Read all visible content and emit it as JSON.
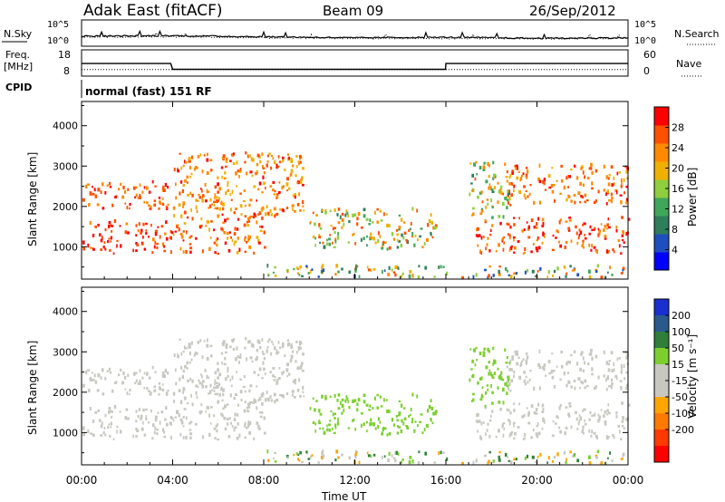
{
  "header": {
    "site_title": "Adak East (fitACF)",
    "beam": "Beam 09",
    "date": "26/Sep/2012"
  },
  "noise_panel": {
    "left_label": "N.Sky",
    "right_label": "N.Search",
    "left_ticks": [
      "10^5",
      "10^0"
    ],
    "right_ticks": [
      "10^5",
      "10^0"
    ]
  },
  "freq_panel": {
    "left_label_1": "Freq.",
    "left_label_2": "[MHz]",
    "right_label": "Nave",
    "left_ticks": [
      "18",
      "8"
    ],
    "right_ticks": [
      "60",
      "0"
    ]
  },
  "cpid_panel": {
    "label": "CPID",
    "mode_text": "normal (fast) 151 RF"
  },
  "colors": {
    "frame": "#000000",
    "power_scale": [
      "#0000ff",
      "#1f4fbf",
      "#2e7d5b",
      "#3fa65a",
      "#8fce3c",
      "#f0b000",
      "#ff8a00",
      "#ff5000",
      "#ff0000"
    ],
    "velocity_scale": [
      "#1a2fd0",
      "#2a5a8c",
      "#2f7f3a",
      "#7ccf2f",
      "#c8c8c0",
      "#c8c8c0",
      "#ffa500",
      "#ff7a00",
      "#ff3a00",
      "#ff0000"
    ]
  },
  "chart_data": [
    {
      "type": "line",
      "panel": "noise",
      "series": [
        {
          "name": "N.Sky",
          "x": [
            "00:00",
            "04:00",
            "08:00",
            "12:00",
            "16:00",
            "20:00",
            "00:00"
          ],
          "values_log10": [
            1.9,
            2.0,
            1.8,
            1.6,
            1.7,
            1.5,
            1.6
          ]
        },
        {
          "name": "N.Search",
          "x": [
            "00:00",
            "04:00",
            "08:00",
            "12:00",
            "16:00",
            "20:00",
            "00:00"
          ],
          "values_log10": [
            1.7,
            1.8,
            1.6,
            1.5,
            1.5,
            1.4,
            1.5
          ]
        }
      ],
      "ylim_log10": [
        0,
        5
      ]
    },
    {
      "type": "line",
      "panel": "frequency",
      "series": [
        {
          "name": "Freq.",
          "x": [
            "00:00",
            "03:55",
            "04:00",
            "15:59",
            "16:00",
            "24:00"
          ],
          "values": [
            12.8,
            12.8,
            10.6,
            10.6,
            12.8,
            12.8
          ]
        },
        {
          "name": "Nave",
          "x": [
            "00:00",
            "24:00"
          ],
          "values": [
            15,
            15
          ]
        }
      ],
      "ylim_left": [
        8,
        18
      ],
      "ylim_right": [
        0,
        60
      ]
    },
    {
      "type": "heatmap",
      "panel": "power",
      "xlabel": "",
      "ylabel": "Slant Range [km]",
      "x_ticks": [
        "00:00",
        "04:00",
        "08:00",
        "12:00",
        "16:00",
        "20:00",
        "00:00"
      ],
      "xlim_hours": [
        0,
        24
      ],
      "y_ticks": [
        1000,
        2000,
        3000,
        4000
      ],
      "ylim_km": [
        200,
        4600
      ],
      "colorbar_label": "Power [dB]",
      "colorbar_ticks": [
        4,
        8,
        12,
        16,
        20,
        24,
        28
      ],
      "colorbar_range": [
        0,
        32
      ]
    },
    {
      "type": "heatmap",
      "panel": "velocity",
      "xlabel": "Time UT",
      "ylabel": "Slant Range [km]",
      "x_ticks": [
        "00:00",
        "04:00",
        "08:00",
        "12:00",
        "16:00",
        "20:00",
        "00:00"
      ],
      "xlim_hours": [
        0,
        24
      ],
      "y_ticks": [
        1000,
        2000,
        3000,
        4000
      ],
      "ylim_km": [
        200,
        4600
      ],
      "colorbar_label": "Velocity [m s⁻¹]",
      "colorbar_ticks": [
        200,
        100,
        50,
        15,
        -15,
        -50,
        -100,
        -200
      ],
      "colorbar_range": [
        -250,
        250
      ]
    }
  ],
  "scatter_regions": [
    {
      "id": "near_band_early",
      "t0": 0.0,
      "t1": 4.0,
      "r0": 800,
      "r1": 1600,
      "pwr": [
        24,
        32
      ],
      "vel": [
        -15,
        15
      ]
    },
    {
      "id": "far_band_early",
      "t0": 0.0,
      "t1": 4.0,
      "r0": 1900,
      "r1": 2600,
      "pwr": [
        22,
        30
      ],
      "vel": [
        -15,
        15
      ]
    },
    {
      "id": "near_band_mid",
      "t0": 4.0,
      "t1": 8.0,
      "r0": 800,
      "r1": 1700,
      "pwr": [
        20,
        30
      ],
      "vel": [
        -15,
        15
      ]
    },
    {
      "id": "rising_arc",
      "t0": 4.0,
      "t1": 9.8,
      "r0": 1700,
      "r1": 3300,
      "pwr": [
        18,
        30
      ],
      "vel": [
        -15,
        15
      ]
    },
    {
      "id": "orange_patch",
      "t0": 5.0,
      "t1": 6.6,
      "r0": 1900,
      "r1": 2400,
      "pwr": [
        20,
        28
      ],
      "vel": [
        -50,
        -15
      ]
    },
    {
      "id": "evening_blob",
      "t0": 10.0,
      "t1": 15.6,
      "r0": 900,
      "r1": 1900,
      "pwr": [
        8,
        28
      ],
      "vel": [
        15,
        50
      ]
    },
    {
      "id": "late_near",
      "t0": 17.3,
      "t1": 24.0,
      "r0": 800,
      "r1": 1700,
      "pwr": [
        22,
        32
      ],
      "vel": [
        -15,
        15
      ]
    },
    {
      "id": "late_far",
      "t0": 18.6,
      "t1": 24.0,
      "r0": 2000,
      "r1": 3000,
      "pwr": [
        20,
        30
      ],
      "vel": [
        -15,
        15
      ]
    },
    {
      "id": "late_rise",
      "t0": 17.0,
      "t1": 18.8,
      "r0": 1600,
      "r1": 3100,
      "pwr": [
        10,
        26
      ],
      "vel": [
        15,
        50
      ]
    },
    {
      "id": "ground_scatter",
      "t0": 8.0,
      "t1": 24.0,
      "r0": 200,
      "r1": 500,
      "pwr": [
        4,
        28
      ],
      "vel": [
        -100,
        100
      ]
    }
  ]
}
